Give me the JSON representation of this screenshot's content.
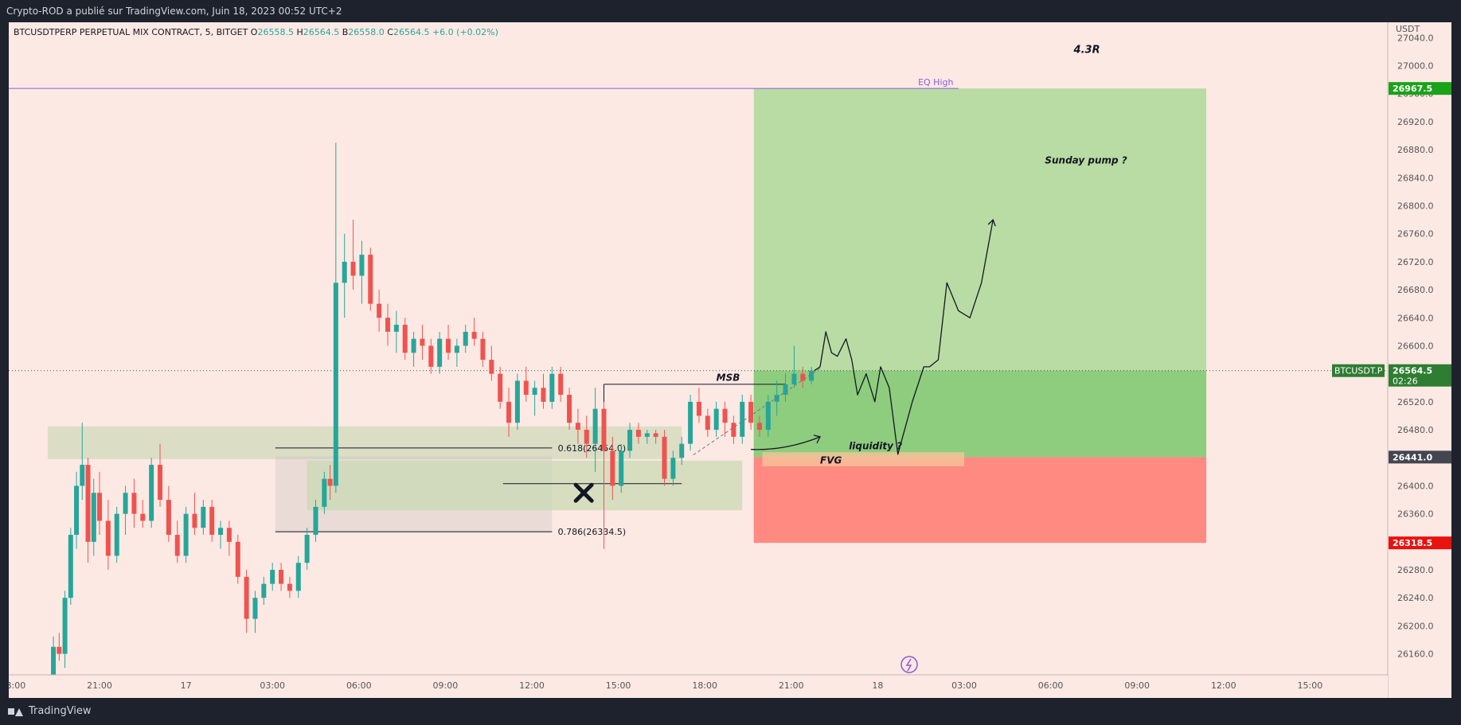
{
  "header": {
    "publish_text": "Crypto-ROD a publié sur TradingView.com, Juin 18, 2023 00:52 UTC+2"
  },
  "footer": {
    "logo_text": "TradingView"
  },
  "colors": {
    "up": "#26a69a",
    "down": "#ef5350",
    "target_zone": "#b9dca4",
    "target_zone_active": "#8ecc7e",
    "stop_zone": "#ff8a82",
    "eq_line": "#8e5bd8",
    "price_badge": "#4caf50"
  },
  "chart_data": {
    "type": "candlestick",
    "symbol_info": "BTCUSDTPERP PERPETUAL MIX CONTRACT, 5, BITGET",
    "ohlc": {
      "open_label": "O",
      "open": "26558.5",
      "high_label": "H",
      "high": "26564.5",
      "low_label": "B",
      "low": "26558.0",
      "close_label": "C",
      "close": "26564.5",
      "change": "+6.0 (+0.02%)"
    },
    "currency": "USDT",
    "y_ticks": [
      "27040.0",
      "27000.0",
      "26960.0",
      "26920.0",
      "26880.0",
      "26840.0",
      "26800.0",
      "26760.0",
      "26720.0",
      "26680.0",
      "26640.0",
      "26600.0",
      "26560.0",
      "26520.0",
      "26480.0",
      "26440.0",
      "26400.0",
      "26360.0",
      "26320.0",
      "26280.0",
      "26240.0",
      "26200.0",
      "26160.0"
    ],
    "y_tick_values": [
      27040,
      27000,
      26960,
      26920,
      26880,
      26840,
      26800,
      26760,
      26720,
      26680,
      26640,
      26600,
      26560,
      26520,
      26480,
      26440,
      26400,
      26360,
      26320,
      26280,
      26240,
      26200,
      26160
    ],
    "ylim": [
      26130,
      27062
    ],
    "x_ticks": [
      "18:00",
      "21:00",
      "17",
      "03:00",
      "06:00",
      "09:00",
      "12:00",
      "15:00",
      "18:00",
      "21:00",
      "18",
      "03:00",
      "06:00",
      "09:00",
      "12:00",
      "15:00"
    ],
    "x_tick_hours": [
      -3,
      0,
      3,
      6,
      9,
      12,
      15,
      18,
      21,
      24,
      27,
      30,
      33,
      36,
      39,
      42
    ],
    "x_axis_note": "hours from Jun 16 21:00",
    "badges": [
      {
        "value": 26967.5,
        "label": "26967.5",
        "color": "#1ba21b"
      },
      {
        "value": 26564.5,
        "label": "26564.5",
        "color": "#2e7d32",
        "sub": "02:26",
        "symbol": "BTCUSDT.P"
      },
      {
        "value": 26441.0,
        "label": "26441.0",
        "color": "#434651"
      },
      {
        "value": 26318.5,
        "label": "26318.5",
        "color": "#e8130f"
      }
    ],
    "eq_high": {
      "label": "EQ High",
      "value": 26967.5
    },
    "position": {
      "ratio_label": "4.3R",
      "entry": 26441.0,
      "target": 26967.5,
      "stop": 26318.5,
      "start_hour": 22.7,
      "end_hour": 38.4,
      "current": 26564.5
    },
    "fib_levels": [
      {
        "label": "0.618(26454.0)",
        "value": 26454.0
      },
      {
        "label": "0.786(26334.5)",
        "value": 26334.5
      }
    ],
    "annotations": [
      {
        "text": "MSB"
      },
      {
        "text": "liquidity ?"
      },
      {
        "text": "FVG"
      },
      {
        "text": "Sunday pump ?"
      }
    ],
    "candles_hourly": [
      {
        "h": -1.6,
        "o": 26130,
        "hi": 26185,
        "lo": 26130,
        "c": 26170
      },
      {
        "h": -1.4,
        "o": 26170,
        "hi": 26190,
        "lo": 26150,
        "c": 26160
      },
      {
        "h": -1.2,
        "o": 26160,
        "hi": 26250,
        "lo": 26140,
        "c": 26240
      },
      {
        "h": -1.0,
        "o": 26240,
        "hi": 26340,
        "lo": 26230,
        "c": 26330
      },
      {
        "h": -0.8,
        "o": 26330,
        "hi": 26420,
        "lo": 26310,
        "c": 26400
      },
      {
        "h": -0.6,
        "o": 26400,
        "hi": 26490,
        "lo": 26380,
        "c": 26430
      },
      {
        "h": -0.4,
        "o": 26430,
        "hi": 26440,
        "lo": 26290,
        "c": 26320
      },
      {
        "h": -0.2,
        "o": 26320,
        "hi": 26410,
        "lo": 26300,
        "c": 26390
      },
      {
        "h": 0.0,
        "o": 26390,
        "hi": 26420,
        "lo": 26330,
        "c": 26350
      },
      {
        "h": 0.3,
        "o": 26350,
        "hi": 26380,
        "lo": 26280,
        "c": 26300
      },
      {
        "h": 0.6,
        "o": 26300,
        "hi": 26370,
        "lo": 26290,
        "c": 26360
      },
      {
        "h": 0.9,
        "o": 26360,
        "hi": 26400,
        "lo": 26330,
        "c": 26390
      },
      {
        "h": 1.2,
        "o": 26390,
        "hi": 26410,
        "lo": 26340,
        "c": 26360
      },
      {
        "h": 1.5,
        "o": 26360,
        "hi": 26380,
        "lo": 26340,
        "c": 26350
      },
      {
        "h": 1.8,
        "o": 26350,
        "hi": 26440,
        "lo": 26340,
        "c": 26430
      },
      {
        "h": 2.1,
        "o": 26430,
        "hi": 26460,
        "lo": 26370,
        "c": 26380
      },
      {
        "h": 2.4,
        "o": 26380,
        "hi": 26400,
        "lo": 26320,
        "c": 26330
      },
      {
        "h": 2.7,
        "o": 26330,
        "hi": 26350,
        "lo": 26290,
        "c": 26300
      },
      {
        "h": 3.0,
        "o": 26300,
        "hi": 26370,
        "lo": 26290,
        "c": 26360
      },
      {
        "h": 3.3,
        "o": 26360,
        "hi": 26390,
        "lo": 26330,
        "c": 26340
      },
      {
        "h": 3.6,
        "o": 26340,
        "hi": 26380,
        "lo": 26330,
        "c": 26370
      },
      {
        "h": 3.9,
        "o": 26370,
        "hi": 26380,
        "lo": 26320,
        "c": 26330
      },
      {
        "h": 4.2,
        "o": 26330,
        "hi": 26350,
        "lo": 26310,
        "c": 26340
      },
      {
        "h": 4.5,
        "o": 26340,
        "hi": 26350,
        "lo": 26300,
        "c": 26320
      },
      {
        "h": 4.8,
        "o": 26320,
        "hi": 26330,
        "lo": 26260,
        "c": 26270
      },
      {
        "h": 5.1,
        "o": 26270,
        "hi": 26280,
        "lo": 26190,
        "c": 26210
      },
      {
        "h": 5.4,
        "o": 26210,
        "hi": 26250,
        "lo": 26190,
        "c": 26240
      },
      {
        "h": 5.7,
        "o": 26240,
        "hi": 26270,
        "lo": 26230,
        "c": 26260
      },
      {
        "h": 6.0,
        "o": 26260,
        "hi": 26290,
        "lo": 26250,
        "c": 26280
      },
      {
        "h": 6.3,
        "o": 26280,
        "hi": 26290,
        "lo": 26250,
        "c": 26260
      },
      {
        "h": 6.6,
        "o": 26260,
        "hi": 26270,
        "lo": 26240,
        "c": 26250
      },
      {
        "h": 6.9,
        "o": 26250,
        "hi": 26300,
        "lo": 26240,
        "c": 26290
      },
      {
        "h": 7.2,
        "o": 26290,
        "hi": 26340,
        "lo": 26280,
        "c": 26330
      },
      {
        "h": 7.5,
        "o": 26330,
        "hi": 26380,
        "lo": 26320,
        "c": 26370
      },
      {
        "h": 7.8,
        "o": 26370,
        "hi": 26420,
        "lo": 26360,
        "c": 26410
      },
      {
        "h": 8.0,
        "o": 26410,
        "hi": 26430,
        "lo": 26380,
        "c": 26400
      },
      {
        "h": 8.2,
        "o": 26400,
        "hi": 26890,
        "lo": 26390,
        "c": 26690
      },
      {
        "h": 8.5,
        "o": 26690,
        "hi": 26760,
        "lo": 26640,
        "c": 26720
      },
      {
        "h": 8.8,
        "o": 26720,
        "hi": 26780,
        "lo": 26680,
        "c": 26700
      },
      {
        "h": 9.1,
        "o": 26700,
        "hi": 26750,
        "lo": 26660,
        "c": 26730
      },
      {
        "h": 9.4,
        "o": 26730,
        "hi": 26740,
        "lo": 26650,
        "c": 26660
      },
      {
        "h": 9.7,
        "o": 26660,
        "hi": 26680,
        "lo": 26620,
        "c": 26640
      },
      {
        "h": 10.0,
        "o": 26640,
        "hi": 26660,
        "lo": 26600,
        "c": 26620
      },
      {
        "h": 10.3,
        "o": 26620,
        "hi": 26650,
        "lo": 26590,
        "c": 26630
      },
      {
        "h": 10.6,
        "o": 26630,
        "hi": 26640,
        "lo": 26580,
        "c": 26590
      },
      {
        "h": 10.9,
        "o": 26590,
        "hi": 26620,
        "lo": 26570,
        "c": 26610
      },
      {
        "h": 11.2,
        "o": 26610,
        "hi": 26630,
        "lo": 26580,
        "c": 26600
      },
      {
        "h": 11.5,
        "o": 26600,
        "hi": 26610,
        "lo": 26560,
        "c": 26570
      },
      {
        "h": 11.8,
        "o": 26570,
        "hi": 26620,
        "lo": 26560,
        "c": 26610
      },
      {
        "h": 12.1,
        "o": 26610,
        "hi": 26630,
        "lo": 26580,
        "c": 26590
      },
      {
        "h": 12.4,
        "o": 26590,
        "hi": 26610,
        "lo": 26570,
        "c": 26600
      },
      {
        "h": 12.7,
        "o": 26600,
        "hi": 26630,
        "lo": 26590,
        "c": 26620
      },
      {
        "h": 13.0,
        "o": 26620,
        "hi": 26640,
        "lo": 26600,
        "c": 26610
      },
      {
        "h": 13.3,
        "o": 26610,
        "hi": 26620,
        "lo": 26570,
        "c": 26580
      },
      {
        "h": 13.6,
        "o": 26580,
        "hi": 26600,
        "lo": 26550,
        "c": 26560
      },
      {
        "h": 13.9,
        "o": 26560,
        "hi": 26570,
        "lo": 26510,
        "c": 26520
      },
      {
        "h": 14.2,
        "o": 26520,
        "hi": 26540,
        "lo": 26470,
        "c": 26490
      },
      {
        "h": 14.5,
        "o": 26490,
        "hi": 26560,
        "lo": 26480,
        "c": 26550
      },
      {
        "h": 14.8,
        "o": 26550,
        "hi": 26570,
        "lo": 26520,
        "c": 26530
      },
      {
        "h": 15.1,
        "o": 26530,
        "hi": 26550,
        "lo": 26500,
        "c": 26540
      },
      {
        "h": 15.4,
        "o": 26540,
        "hi": 26560,
        "lo": 26510,
        "c": 26520
      },
      {
        "h": 15.7,
        "o": 26520,
        "hi": 26570,
        "lo": 26510,
        "c": 26560
      },
      {
        "h": 16.0,
        "o": 26560,
        "hi": 26570,
        "lo": 26520,
        "c": 26530
      },
      {
        "h": 16.3,
        "o": 26530,
        "hi": 26540,
        "lo": 26480,
        "c": 26490
      },
      {
        "h": 16.6,
        "o": 26490,
        "hi": 26510,
        "lo": 26460,
        "c": 26480
      },
      {
        "h": 16.9,
        "o": 26480,
        "hi": 26500,
        "lo": 26440,
        "c": 26460
      },
      {
        "h": 17.2,
        "o": 26460,
        "hi": 26540,
        "lo": 26420,
        "c": 26510
      },
      {
        "h": 17.5,
        "o": 26510,
        "hi": 26520,
        "lo": 26310,
        "c": 26450
      },
      {
        "h": 17.8,
        "o": 26450,
        "hi": 26470,
        "lo": 26380,
        "c": 26400
      },
      {
        "h": 18.1,
        "o": 26400,
        "hi": 26460,
        "lo": 26390,
        "c": 26450
      },
      {
        "h": 18.4,
        "o": 26450,
        "hi": 26490,
        "lo": 26440,
        "c": 26480
      },
      {
        "h": 18.7,
        "o": 26480,
        "hi": 26490,
        "lo": 26460,
        "c": 26470
      },
      {
        "h": 19.0,
        "o": 26470,
        "hi": 26480,
        "lo": 26460,
        "c": 26475
      },
      {
        "h": 19.3,
        "o": 26475,
        "hi": 26480,
        "lo": 26460,
        "c": 26470
      },
      {
        "h": 19.6,
        "o": 26470,
        "hi": 26480,
        "lo": 26400,
        "c": 26410
      },
      {
        "h": 19.9,
        "o": 26410,
        "hi": 26450,
        "lo": 26400,
        "c": 26440
      },
      {
        "h": 20.2,
        "o": 26440,
        "hi": 26470,
        "lo": 26430,
        "c": 26460
      },
      {
        "h": 20.5,
        "o": 26460,
        "hi": 26530,
        "lo": 26450,
        "c": 26520
      },
      {
        "h": 20.8,
        "o": 26520,
        "hi": 26540,
        "lo": 26490,
        "c": 26500
      },
      {
        "h": 21.1,
        "o": 26500,
        "hi": 26510,
        "lo": 26470,
        "c": 26480
      },
      {
        "h": 21.4,
        "o": 26480,
        "hi": 26520,
        "lo": 26470,
        "c": 26510
      },
      {
        "h": 21.7,
        "o": 26510,
        "hi": 26520,
        "lo": 26470,
        "c": 26490
      },
      {
        "h": 22.0,
        "o": 26490,
        "hi": 26500,
        "lo": 26460,
        "c": 26470
      },
      {
        "h": 22.3,
        "o": 26470,
        "hi": 26530,
        "lo": 26460,
        "c": 26520
      },
      {
        "h": 22.6,
        "o": 26520,
        "hi": 26530,
        "lo": 26480,
        "c": 26490
      },
      {
        "h": 22.9,
        "o": 26490,
        "hi": 26500,
        "lo": 26470,
        "c": 26480
      },
      {
        "h": 23.2,
        "o": 26480,
        "hi": 26530,
        "lo": 26470,
        "c": 26520
      },
      {
        "h": 23.5,
        "o": 26520,
        "hi": 26550,
        "lo": 26500,
        "c": 26530
      },
      {
        "h": 23.8,
        "o": 26530,
        "hi": 26560,
        "lo": 26520,
        "c": 26545
      },
      {
        "h": 24.1,
        "o": 26545,
        "hi": 26600,
        "lo": 26540,
        "c": 26560
      },
      {
        "h": 24.4,
        "o": 26560,
        "hi": 26570,
        "lo": 26540,
        "c": 26550
      },
      {
        "h": 24.7,
        "o": 26550,
        "hi": 26570,
        "lo": 26545,
        "c": 26564.5
      }
    ],
    "projection_path_hours": [
      [
        24.8,
        26564.5
      ],
      [
        25.0,
        26570
      ],
      [
        25.2,
        26620
      ],
      [
        25.4,
        26590
      ],
      [
        25.6,
        26585
      ],
      [
        25.9,
        26610
      ],
      [
        26.1,
        26580
      ],
      [
        26.3,
        26530
      ],
      [
        26.6,
        26560
      ],
      [
        26.9,
        26520
      ],
      [
        27.1,
        26570
      ],
      [
        27.4,
        26540
      ],
      [
        27.7,
        26445
      ],
      [
        28.2,
        26520
      ],
      [
        28.6,
        26570
      ],
      [
        28.8,
        26570
      ],
      [
        29.1,
        26580
      ],
      [
        29.4,
        26690
      ],
      [
        29.8,
        26650
      ],
      [
        30.2,
        26640
      ],
      [
        30.6,
        26690
      ],
      [
        31.0,
        26780
      ]
    ]
  }
}
